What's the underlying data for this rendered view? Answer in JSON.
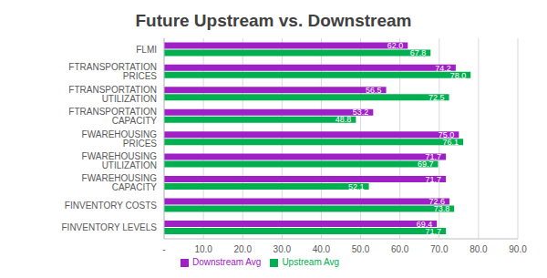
{
  "chart_data": {
    "type": "bar",
    "title": "Future Upstream vs. Downstream",
    "orientation": "horizontal",
    "categories": [
      "FLMI",
      "FTRANSPORTATION PRICES",
      "FTRANSPORTATION UTILIZATION",
      "FTRANSPORTATION CAPACITY",
      "FWAREHOUSING PRICES",
      "FWAREHOUSING UTILIZATION",
      "FWAREHOUSING CAPACITY",
      "FINVENTORY COSTS",
      "FINVENTORY LEVELS"
    ],
    "series": [
      {
        "name": "Downstream Avg",
        "color": "#a020c8",
        "values": [
          62.0,
          74.2,
          56.5,
          53.2,
          75.0,
          71.7,
          71.7,
          72.6,
          69.4
        ],
        "value_labels": [
          "62.0",
          "74.2",
          "56.5",
          "53.2",
          "75.0",
          "71.7",
          "71.7",
          "72.6",
          "69.4"
        ]
      },
      {
        "name": "Upstream Avg",
        "color": "#00b050",
        "values": [
          67.8,
          78.0,
          72.5,
          48.8,
          76.1,
          69.7,
          52.1,
          73.8,
          71.7
        ],
        "value_labels": [
          "67.8",
          "78.0",
          "72.5",
          "48.8",
          "76.1",
          "69.7",
          "52.1",
          "73.8",
          "71.7"
        ]
      }
    ],
    "xlim": [
      0,
      90
    ],
    "xticks": [
      {
        "value": 0,
        "label": "-"
      },
      {
        "value": 10,
        "label": "10.0"
      },
      {
        "value": 20,
        "label": "20.0"
      },
      {
        "value": 30,
        "label": "30.0"
      },
      {
        "value": 40,
        "label": "40.0"
      },
      {
        "value": 50,
        "label": "50.0"
      },
      {
        "value": 60,
        "label": "60.0"
      },
      {
        "value": 70,
        "label": "70.0"
      },
      {
        "value": 80,
        "label": "80.0"
      },
      {
        "value": 90,
        "label": "90.0"
      }
    ],
    "grid": true,
    "legend": "bottom",
    "data_labels": true
  }
}
